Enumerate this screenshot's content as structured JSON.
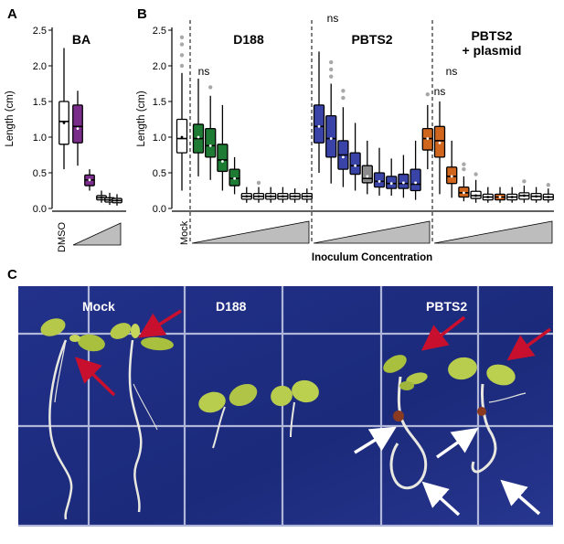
{
  "panels": {
    "a": {
      "letter": "A",
      "title": "BA",
      "xtick": "DMSO"
    },
    "b": {
      "letter": "B",
      "xlabel": "Inoculum Concentration",
      "xtick": "Mock",
      "groups": [
        {
          "title": "D188",
          "title2": ""
        },
        {
          "title": "PBTS2",
          "title2": ""
        },
        {
          "title": "PBTS2",
          "title2": "+ plasmid"
        }
      ]
    },
    "c": {
      "letter": "C",
      "labels": [
        "Mock",
        "D188",
        "PBTS2"
      ]
    }
  },
  "ns_labels": [
    "ns",
    "ns",
    "ns",
    "ns"
  ],
  "colors": {
    "white": "#ffffff",
    "purple": "#7b2d8b",
    "green": "#1e7b34",
    "blue": "#3a43a8",
    "orange": "#d0661e",
    "grey": "#8c8c8c",
    "photo_bg": "#1b2a7a"
  },
  "chart_data": [
    {
      "type": "box",
      "title": "BA",
      "ylabel": "Length (cm)",
      "ylim": [
        0,
        2.5
      ],
      "yticks": [
        "0.0",
        "0.5",
        "1.0",
        "1.5",
        "2.0",
        "2.5"
      ],
      "boxes": [
        {
          "min": 0.55,
          "q1": 0.9,
          "median": 1.22,
          "q3": 1.5,
          "max": 2.25,
          "mean": 1.2,
          "color": "white",
          "outliers": []
        },
        {
          "min": 0.6,
          "q1": 0.92,
          "median": 1.15,
          "q3": 1.45,
          "max": 1.65,
          "mean": 1.12,
          "color": "purple",
          "outliers": []
        },
        {
          "min": 0.25,
          "q1": 0.32,
          "median": 0.4,
          "q3": 0.47,
          "max": 0.55,
          "mean": 0.4,
          "color": "purple",
          "outliers": []
        },
        {
          "min": 0.08,
          "q1": 0.12,
          "median": 0.15,
          "q3": 0.18,
          "max": 0.25,
          "mean": 0.15,
          "color": "white",
          "outliers": []
        },
        {
          "min": 0.05,
          "q1": 0.09,
          "median": 0.12,
          "q3": 0.15,
          "max": 0.22,
          "mean": 0.12,
          "color": "white",
          "outliers": []
        },
        {
          "min": 0.04,
          "q1": 0.08,
          "median": 0.11,
          "q3": 0.14,
          "max": 0.2,
          "mean": 0.11,
          "color": "white",
          "outliers": []
        }
      ]
    },
    {
      "type": "box",
      "ylabel": "Length (cm)",
      "xlabel": "Inoculum Concentration",
      "ylim": [
        0,
        2.5
      ],
      "yticks": [
        "0.0",
        "0.5",
        "1.0",
        "1.5",
        "2.0",
        "2.5"
      ],
      "boxes": [
        {
          "min": 0.25,
          "q1": 0.78,
          "median": 0.98,
          "q3": 1.25,
          "max": 1.9,
          "mean": 1.0,
          "color": "white",
          "outliers": [
            2.0,
            2.15,
            2.3,
            2.4
          ]
        },
        {
          "min": 0.45,
          "q1": 0.78,
          "median": 0.98,
          "q3": 1.18,
          "max": 1.82,
          "mean": 1.0,
          "color": "green",
          "outliers": []
        },
        {
          "min": 0.4,
          "q1": 0.72,
          "median": 0.88,
          "q3": 1.12,
          "max": 1.58,
          "mean": 0.88,
          "color": "green",
          "outliers": [
            1.7
          ]
        },
        {
          "min": 0.25,
          "q1": 0.52,
          "median": 0.68,
          "q3": 0.9,
          "max": 1.45,
          "mean": 0.66,
          "color": "green",
          "outliers": []
        },
        {
          "min": 0.2,
          "q1": 0.32,
          "median": 0.42,
          "q3": 0.55,
          "max": 0.72,
          "mean": 0.42,
          "color": "green",
          "outliers": []
        },
        {
          "min": 0.08,
          "q1": 0.13,
          "median": 0.17,
          "q3": 0.21,
          "max": 0.3,
          "mean": 0.17,
          "color": "white",
          "outliers": []
        },
        {
          "min": 0.08,
          "q1": 0.13,
          "median": 0.17,
          "q3": 0.21,
          "max": 0.3,
          "mean": 0.17,
          "color": "white",
          "outliers": [
            0.36
          ]
        },
        {
          "min": 0.08,
          "q1": 0.13,
          "median": 0.17,
          "q3": 0.21,
          "max": 0.3,
          "mean": 0.17,
          "color": "white",
          "outliers": []
        },
        {
          "min": 0.08,
          "q1": 0.13,
          "median": 0.17,
          "q3": 0.21,
          "max": 0.3,
          "mean": 0.17,
          "color": "white",
          "outliers": []
        },
        {
          "min": 0.08,
          "q1": 0.13,
          "median": 0.17,
          "q3": 0.21,
          "max": 0.28,
          "mean": 0.17,
          "color": "white",
          "outliers": []
        },
        {
          "min": 0.08,
          "q1": 0.13,
          "median": 0.17,
          "q3": 0.21,
          "max": 0.28,
          "mean": 0.17,
          "color": "white",
          "outliers": []
        },
        {
          "min": 0.5,
          "q1": 0.92,
          "median": 1.15,
          "q3": 1.45,
          "max": 2.2,
          "mean": 1.15,
          "color": "blue",
          "outliers": []
        },
        {
          "min": 0.35,
          "q1": 0.72,
          "median": 0.98,
          "q3": 1.3,
          "max": 1.75,
          "mean": 0.98,
          "color": "blue",
          "outliers": [
            1.85,
            1.95,
            2.05
          ]
        },
        {
          "min": 0.3,
          "q1": 0.55,
          "median": 0.75,
          "q3": 0.95,
          "max": 1.42,
          "mean": 0.72,
          "color": "blue",
          "outliers": [
            1.55,
            1.65
          ]
        },
        {
          "min": 0.25,
          "q1": 0.48,
          "median": 0.6,
          "q3": 0.78,
          "max": 1.2,
          "mean": 0.6,
          "color": "blue",
          "outliers": []
        },
        {
          "min": 0.2,
          "q1": 0.36,
          "median": 0.42,
          "q3": 0.6,
          "max": 0.95,
          "mean": 0.45,
          "color": "grey",
          "outliers": []
        },
        {
          "min": 0.18,
          "q1": 0.3,
          "median": 0.38,
          "q3": 0.5,
          "max": 0.85,
          "mean": 0.38,
          "color": "blue",
          "outliers": []
        },
        {
          "min": 0.18,
          "q1": 0.28,
          "median": 0.35,
          "q3": 0.45,
          "max": 0.7,
          "mean": 0.35,
          "color": "blue",
          "outliers": []
        },
        {
          "min": 0.15,
          "q1": 0.28,
          "median": 0.35,
          "q3": 0.48,
          "max": 0.75,
          "mean": 0.36,
          "color": "blue",
          "outliers": []
        },
        {
          "min": 0.12,
          "q1": 0.25,
          "median": 0.34,
          "q3": 0.55,
          "max": 0.95,
          "mean": 0.36,
          "color": "blue",
          "outliers": []
        },
        {
          "min": 0.55,
          "q1": 0.82,
          "median": 0.98,
          "q3": 1.12,
          "max": 1.45,
          "mean": 0.98,
          "color": "orange",
          "outliers": [
            1.6
          ]
        },
        {
          "min": 0.2,
          "q1": 0.72,
          "median": 0.95,
          "q3": 1.15,
          "max": 1.5,
          "mean": 0.92,
          "color": "orange",
          "outliers": []
        },
        {
          "min": 0.15,
          "q1": 0.35,
          "median": 0.45,
          "q3": 0.58,
          "max": 0.95,
          "mean": 0.45,
          "color": "orange",
          "outliers": []
        },
        {
          "min": 0.1,
          "q1": 0.16,
          "median": 0.22,
          "q3": 0.3,
          "max": 0.45,
          "mean": 0.22,
          "color": "orange",
          "outliers": [
            0.55,
            0.62
          ]
        },
        {
          "min": 0.08,
          "q1": 0.14,
          "median": 0.18,
          "q3": 0.24,
          "max": 0.4,
          "mean": 0.18,
          "color": "white",
          "outliers": [
            0.48
          ]
        },
        {
          "min": 0.08,
          "q1": 0.12,
          "median": 0.16,
          "q3": 0.2,
          "max": 0.3,
          "mean": 0.16,
          "color": "white",
          "outliers": []
        },
        {
          "min": 0.08,
          "q1": 0.12,
          "median": 0.16,
          "q3": 0.2,
          "max": 0.3,
          "mean": 0.16,
          "color": "orange",
          "outliers": []
        },
        {
          "min": 0.08,
          "q1": 0.12,
          "median": 0.16,
          "q3": 0.2,
          "max": 0.3,
          "mean": 0.16,
          "color": "white",
          "outliers": []
        },
        {
          "min": 0.08,
          "q1": 0.13,
          "median": 0.18,
          "q3": 0.22,
          "max": 0.32,
          "mean": 0.18,
          "color": "white",
          "outliers": [
            0.38
          ]
        },
        {
          "min": 0.08,
          "q1": 0.12,
          "median": 0.17,
          "q3": 0.21,
          "max": 0.3,
          "mean": 0.17,
          "color": "white",
          "outliers": []
        },
        {
          "min": 0.08,
          "q1": 0.12,
          "median": 0.16,
          "q3": 0.2,
          "max": 0.28,
          "mean": 0.16,
          "color": "white",
          "outliers": [
            0.33
          ]
        }
      ]
    }
  ]
}
